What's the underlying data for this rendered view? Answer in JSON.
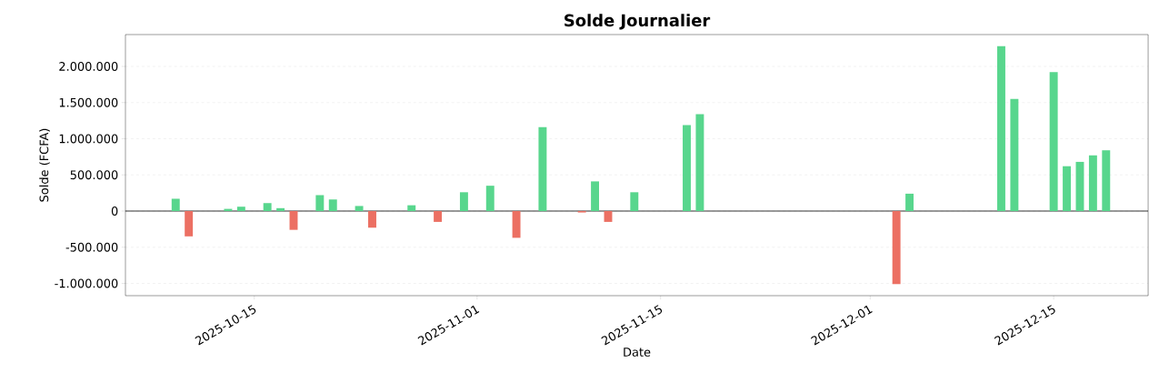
{
  "chart_data": {
    "type": "bar",
    "title": "Solde Journalier",
    "xlabel": "Date",
    "ylabel": "Solde (FCFA)",
    "x": [
      "2025-10-09",
      "2025-10-10",
      "2025-10-13",
      "2025-10-14",
      "2025-10-16",
      "2025-10-17",
      "2025-10-18",
      "2025-10-20",
      "2025-10-21",
      "2025-10-23",
      "2025-10-24",
      "2025-10-27",
      "2025-10-29",
      "2025-10-31",
      "2025-11-02",
      "2025-11-04",
      "2025-11-06",
      "2025-11-09",
      "2025-11-10",
      "2025-11-11",
      "2025-11-13",
      "2025-11-17",
      "2025-11-18",
      "2025-12-03",
      "2025-12-04",
      "2025-12-11",
      "2025-12-12",
      "2025-12-15",
      "2025-12-16",
      "2025-12-17",
      "2025-12-18",
      "2025-12-19"
    ],
    "values": [
      170000,
      -350000,
      30000,
      60000,
      110000,
      40000,
      -260000,
      220000,
      160000,
      70000,
      -230000,
      80000,
      -150000,
      260000,
      350000,
      -370000,
      1160000,
      -20000,
      410000,
      -150000,
      260000,
      1190000,
      1340000,
      -1010000,
      240000,
      2280000,
      1550000,
      1920000,
      620000,
      680000,
      770000,
      840000
    ],
    "colors": [
      "#58d68d",
      "#ec7063",
      "#58d68d",
      "#58d68d",
      "#58d68d",
      "#58d68d",
      "#ec7063",
      "#58d68d",
      "#58d68d",
      "#58d68d",
      "#ec7063",
      "#58d68d",
      "#ec7063",
      "#58d68d",
      "#58d68d",
      "#ec7063",
      "#58d68d",
      "#ec7063",
      "#58d68d",
      "#ec7063",
      "#58d68d",
      "#58d68d",
      "#58d68d",
      "#ec7063",
      "#58d68d",
      "#58d68d",
      "#58d68d",
      "#58d68d",
      "#58d68d",
      "#58d68d",
      "#58d68d",
      "#58d68d"
    ],
    "xlim": [
      "2025-10-05T04:00",
      "2025-12-22T05:00"
    ],
    "xticks": [
      "2025-10-15",
      "2025-11-01",
      "2025-11-15",
      "2025-12-01",
      "2025-12-15"
    ],
    "ylim": [
      -1170000,
      2440000
    ],
    "yticks": [
      {
        "value": -1000000,
        "label": "-1.000.000"
      },
      {
        "value": -500000,
        "label": "-500.000"
      },
      {
        "value": 0,
        "label": "0"
      },
      {
        "value": 500000,
        "label": "500.000"
      },
      {
        "value": 1000000,
        "label": "1.000.000"
      },
      {
        "value": 1500000,
        "label": "1.500.000"
      },
      {
        "value": 2000000,
        "label": "2.000.000"
      }
    ],
    "ref_lines": [
      {
        "axis": "y",
        "value": 0,
        "color": "#000000"
      }
    ],
    "grid": "y"
  }
}
